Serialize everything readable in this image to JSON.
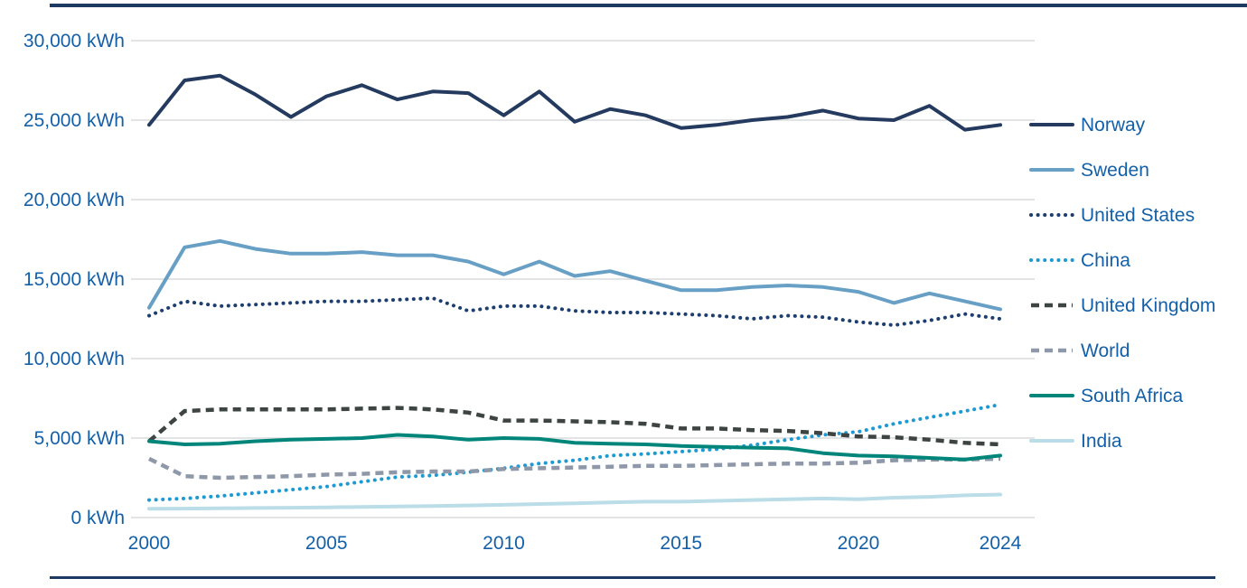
{
  "chart_data": {
    "type": "line",
    "title": "",
    "unit": "kWh",
    "xlim": [
      2000,
      2024
    ],
    "ylim": [
      0,
      30000
    ],
    "grid": true,
    "legend_position": "right",
    "axis_text_color": "#1460a8",
    "gridline_color": "#cfd2d4",
    "frame_rule_color": "#1d3a63",
    "x_years": [
      2000,
      2001,
      2002,
      2003,
      2004,
      2005,
      2006,
      2007,
      2008,
      2009,
      2010,
      2011,
      2012,
      2013,
      2014,
      2015,
      2016,
      2017,
      2018,
      2019,
      2020,
      2021,
      2022,
      2023,
      2024
    ],
    "x_ticks": [
      {
        "value": 2000,
        "label": "2000"
      },
      {
        "value": 2005,
        "label": "2005"
      },
      {
        "value": 2010,
        "label": "2010"
      },
      {
        "value": 2015,
        "label": "2015"
      },
      {
        "value": 2020,
        "label": "2020"
      },
      {
        "value": 2024,
        "label": "2024"
      }
    ],
    "y_ticks": [
      {
        "value": 30000,
        "label": "30,000 kWh"
      },
      {
        "value": 25000,
        "label": "25,000 kWh"
      },
      {
        "value": 20000,
        "label": "20,000 kWh"
      },
      {
        "value": 15000,
        "label": "15,000 kWh"
      },
      {
        "value": 10000,
        "label": "10,000 kWh"
      },
      {
        "value": 5000,
        "label": "5,000 kWh"
      },
      {
        "value": 0,
        "label": "0 kWh"
      }
    ],
    "series": [
      {
        "name": "Norway",
        "slug": "norway",
        "color": "#243a5e",
        "style": "solid",
        "values": [
          24700,
          27500,
          27800,
          26600,
          25200,
          26500,
          27200,
          26300,
          26800,
          26700,
          25300,
          26800,
          24900,
          25700,
          25300,
          24500,
          24700,
          25000,
          25200,
          25600,
          25100,
          25000,
          25900,
          24400,
          24700
        ]
      },
      {
        "name": "Sweden",
        "slug": "sweden",
        "color": "#68a0c5",
        "style": "solid",
        "values": [
          13200,
          17000,
          17400,
          16900,
          16600,
          16600,
          16700,
          16500,
          16500,
          16100,
          15300,
          16100,
          15200,
          15500,
          14900,
          14300,
          14300,
          14500,
          14600,
          14500,
          14200,
          13500,
          14100,
          13600,
          13100
        ]
      },
      {
        "name": "United States",
        "slug": "united-states",
        "color": "#1d3e6e",
        "style": "dotted",
        "values": [
          12700,
          13600,
          13300,
          13400,
          13500,
          13600,
          13600,
          13700,
          13800,
          13000,
          13300,
          13300,
          13000,
          12900,
          12900,
          12800,
          12700,
          12500,
          12700,
          12600,
          12300,
          12100,
          12400,
          12800,
          12500
        ]
      },
      {
        "name": "China",
        "slug": "china",
        "color": "#1e9ad2",
        "style": "dotted",
        "values": [
          1100,
          1200,
          1350,
          1550,
          1750,
          1950,
          2250,
          2550,
          2650,
          2850,
          3100,
          3400,
          3600,
          3900,
          4000,
          4150,
          4300,
          4550,
          4900,
          5200,
          5400,
          5900,
          6300,
          6700,
          7100
        ]
      },
      {
        "name": "United Kingdom",
        "slug": "united-kingdom",
        "color": "#3d4442",
        "style": "dashed",
        "values": [
          4800,
          6700,
          6800,
          6800,
          6800,
          6800,
          6850,
          6900,
          6800,
          6600,
          6100,
          6100,
          6050,
          6000,
          5900,
          5600,
          5600,
          5500,
          5450,
          5300,
          5100,
          5050,
          4900,
          4700,
          4600
        ]
      },
      {
        "name": "World",
        "slug": "world",
        "color": "#8e98a8",
        "style": "dashed",
        "values": [
          3700,
          2600,
          2500,
          2550,
          2600,
          2700,
          2750,
          2850,
          2900,
          2900,
          3050,
          3100,
          3150,
          3200,
          3250,
          3250,
          3300,
          3350,
          3400,
          3400,
          3450,
          3600,
          3650,
          3650,
          3700
        ]
      },
      {
        "name": "South Africa",
        "slug": "south-africa",
        "color": "#00857b",
        "style": "solid",
        "values": [
          4800,
          4600,
          4650,
          4800,
          4900,
          4950,
          5000,
          5200,
          5100,
          4900,
          5000,
          4950,
          4700,
          4650,
          4600,
          4500,
          4450,
          4400,
          4350,
          4050,
          3900,
          3850,
          3750,
          3650,
          3900
        ]
      },
      {
        "name": "India",
        "slug": "india",
        "color": "#bbdde7",
        "style": "solid",
        "values": [
          550,
          560,
          580,
          600,
          620,
          640,
          670,
          700,
          730,
          760,
          800,
          850,
          900,
          950,
          1000,
          1000,
          1050,
          1100,
          1150,
          1200,
          1150,
          1250,
          1300,
          1400,
          1450
        ]
      }
    ]
  }
}
